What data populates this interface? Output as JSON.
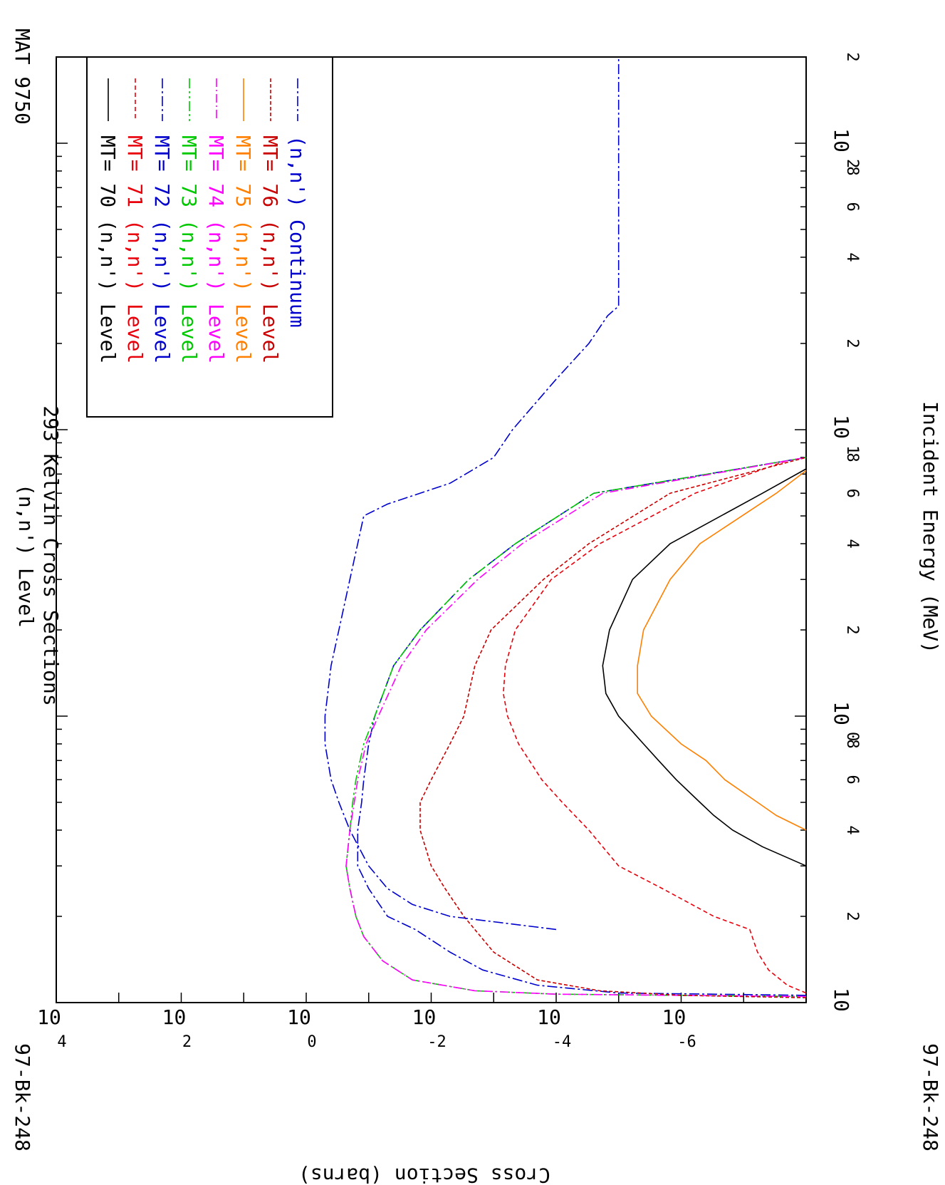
{
  "header": {
    "material": "MAT 9750",
    "title_line1": "(n,n') Level",
    "title_line2": "293 Kelvin Cross Sections",
    "isotope_left": "97-Bk-248",
    "isotope_right": "97-Bk-248"
  },
  "colors": {
    "black": "#000000",
    "red": "#e8000b",
    "blue": "#0000cc",
    "green": "#00c800",
    "magenta": "#ff00ff",
    "orange": "#ff8000",
    "darkred": "#c80000"
  },
  "chart_data": {
    "type": "line",
    "title": "(n,n') Level 293 Kelvin Cross Sections",
    "xlabel": "Incident Energy (MeV)",
    "ylabel": "Cross Section (barns)",
    "x_scale": "log",
    "y_scale": "log",
    "xlim": [
      0.1,
      200
    ],
    "ylim": [
      1e-08,
      10000
    ],
    "x_ticks": [
      {
        "value": 0.1,
        "base": "10",
        "exp": ""
      },
      {
        "value": 1,
        "base": "10",
        "exp": "0"
      },
      {
        "value": 10,
        "base": "10",
        "exp": "1"
      },
      {
        "value": 100,
        "base": "10",
        "exp": "2"
      }
    ],
    "x_minor_labels": [
      {
        "value": 0.2,
        "label": "2"
      },
      {
        "value": 0.4,
        "label": "4"
      },
      {
        "value": 0.6,
        "label": "6"
      },
      {
        "value": 0.8,
        "label": "8"
      },
      {
        "value": 2,
        "label": "2"
      },
      {
        "value": 4,
        "label": "4"
      },
      {
        "value": 6,
        "label": "6"
      },
      {
        "value": 8,
        "label": "8"
      },
      {
        "value": 20,
        "label": "2"
      },
      {
        "value": 40,
        "label": "4"
      },
      {
        "value": 60,
        "label": "6"
      },
      {
        "value": 80,
        "label": "8"
      },
      {
        "value": 200,
        "label": "2"
      }
    ],
    "y_ticks": [
      {
        "value": 10000,
        "base": "10",
        "exp": "4"
      },
      {
        "value": 100,
        "base": "10",
        "exp": "2"
      },
      {
        "value": 1,
        "base": "10",
        "exp": "0"
      },
      {
        "value": 0.01,
        "base": "10",
        "exp": "-2"
      },
      {
        "value": 0.0001,
        "base": "10",
        "exp": "-4"
      },
      {
        "value": 1e-06,
        "base": "10",
        "exp": "-6"
      }
    ],
    "grid": false,
    "legend_position": "top-left",
    "series": [
      {
        "name": "MT= 70 (n,n') Level",
        "mt": "MT= 70",
        "reaction": "(n,n') Level",
        "color": "#000000",
        "dash": "",
        "x": [
          0.3,
          0.35,
          0.4,
          0.45,
          0.5,
          0.6,
          0.7,
          0.8,
          1.0,
          1.2,
          1.5,
          2.0,
          3.0,
          4.0,
          6.0,
          7.3
        ],
        "y": [
          1e-08,
          5e-08,
          1.5e-07,
          3e-07,
          5e-07,
          1.2e-06,
          2.3e-06,
          4e-06,
          1e-05,
          1.6e-05,
          1.8e-05,
          1.4e-05,
          6e-06,
          1.5e-06,
          5e-08,
          1e-08
        ]
      },
      {
        "name": "MT= 71 (n,n') Level",
        "mt": "MT= 71",
        "reaction": "(n,n') Level",
        "color": "#e8000b",
        "dash": "6,4",
        "x": [
          0.108,
          0.115,
          0.13,
          0.15,
          0.18,
          0.2,
          0.25,
          0.3,
          0.4,
          0.5,
          0.6,
          0.8,
          1.0,
          1.2,
          1.5,
          2.0,
          3.0,
          4.0,
          6.0,
          7.8
        ],
        "y": [
          1e-08,
          2e-08,
          4e-08,
          6e-08,
          8e-08,
          3e-07,
          2e-06,
          1e-05,
          3e-05,
          8e-05,
          0.00017,
          0.0004,
          0.0006,
          0.0007,
          0.00065,
          0.00045,
          0.00012,
          2e-05,
          6e-07,
          2e-08
        ]
      },
      {
        "name": "MT= 72 (n,n') Level",
        "mt": "MT= 72",
        "reaction": "(n,n') Level",
        "color": "#0000cc",
        "dash": "14,4,3,4",
        "x": [
          0.106,
          0.108,
          0.115,
          0.13,
          0.15,
          0.18,
          0.2,
          0.25,
          0.3,
          0.4,
          0.5,
          0.6,
          0.8,
          1.0,
          1.5,
          2.0,
          3.0,
          4.0,
          6.0,
          8.0
        ],
        "y": [
          1e-08,
          1e-05,
          0.0002,
          0.0015,
          0.005,
          0.018,
          0.05,
          0.1,
          0.15,
          0.15,
          0.13,
          0.12,
          0.1,
          0.08,
          0.04,
          0.015,
          0.0025,
          0.00045,
          2.5e-05,
          1e-08
        ]
      },
      {
        "name": "MT= 73 (n,n') Level",
        "mt": "MT= 73",
        "reaction": "(n,n') Level",
        "color": "#00c800",
        "dash": "14,4,3,4,3,4",
        "x": [
          0.105,
          0.107,
          0.11,
          0.12,
          0.14,
          0.17,
          0.2,
          0.25,
          0.3,
          0.4,
          0.5,
          0.6,
          0.8,
          1.0,
          1.5,
          2.0,
          3.0,
          4.0,
          6.0,
          8.0
        ],
        "y": [
          1e-08,
          0.0001,
          0.002,
          0.02,
          0.06,
          0.12,
          0.16,
          0.2,
          0.23,
          0.2,
          0.18,
          0.16,
          0.12,
          0.08,
          0.04,
          0.015,
          0.0025,
          0.00045,
          2.5e-05,
          1e-08
        ]
      },
      {
        "name": "MT= 74 (n,n') Level",
        "mt": "MT= 74",
        "reaction": "(n,n') Level",
        "color": "#ff00ff",
        "dash": "12,4,2,4",
        "x": [
          0.105,
          0.107,
          0.11,
          0.12,
          0.14,
          0.17,
          0.2,
          0.25,
          0.3,
          0.4,
          0.5,
          0.6,
          0.8,
          1.0,
          1.5,
          2.0,
          3.0,
          4.0,
          6.0,
          8.0
        ],
        "y": [
          1e-08,
          0.0001,
          0.002,
          0.02,
          0.06,
          0.12,
          0.16,
          0.2,
          0.23,
          0.2,
          0.17,
          0.15,
          0.11,
          0.07,
          0.03,
          0.012,
          0.0018,
          0.00035,
          1.8e-05,
          1e-08
        ]
      },
      {
        "name": "MT= 75 (n,n') Level",
        "mt": "MT= 75",
        "reaction": "(n,n') Level",
        "color": "#ff8000",
        "dash": "",
        "x": [
          0.4,
          0.45,
          0.5,
          0.6,
          0.7,
          0.8,
          1.0,
          1.2,
          1.5,
          2.0,
          3.0,
          4.0,
          6.0,
          7.2
        ],
        "y": [
          1e-08,
          3e-08,
          6e-08,
          2e-07,
          4e-07,
          1e-06,
          3e-06,
          5e-06,
          5e-06,
          4e-06,
          1.5e-06,
          5e-07,
          3e-08,
          1e-08
        ]
      },
      {
        "name": "MT= 76 (n,n') Level",
        "mt": "MT= 76",
        "reaction": "(n,n') Level",
        "color": "#c80000",
        "dash": "5,3",
        "x": [
          0.104,
          0.106,
          0.11,
          0.12,
          0.15,
          0.2,
          0.25,
          0.3,
          0.4,
          0.5,
          0.6,
          0.8,
          1.0,
          1.2,
          1.5,
          2.0,
          3.0,
          4.0,
          6.0,
          8.0
        ],
        "y": [
          1e-08,
          1e-06,
          2e-05,
          0.0002,
          0.001,
          0.003,
          0.006,
          0.01,
          0.015,
          0.015,
          0.01,
          0.005,
          0.003,
          0.0025,
          0.002,
          0.0011,
          0.00016,
          3e-05,
          1.5e-06,
          1e-08
        ]
      },
      {
        "name": "(n,n') Continuum",
        "mt": "",
        "reaction": "(n,n') Continuum",
        "color": "#0000cc",
        "dash": "14,4,3,4",
        "x": [
          0.18,
          0.2,
          0.22,
          0.25,
          0.3,
          0.4,
          0.5,
          0.6,
          0.8,
          1.0,
          1.5,
          2.0,
          3.0,
          4.0,
          5.0,
          5.5,
          6.5,
          8.0,
          10.0,
          15.0,
          20.0,
          25.0,
          27.0,
          200
        ],
        "y": [
          0.0001,
          0.005,
          0.02,
          0.05,
          0.1,
          0.2,
          0.3,
          0.4,
          0.5,
          0.5,
          0.4,
          0.3,
          0.2,
          0.15,
          0.12,
          0.05,
          0.005,
          0.001,
          0.0005,
          0.0001,
          3e-05,
          1.5e-05,
          1e-05,
          1e-05
        ]
      }
    ]
  }
}
